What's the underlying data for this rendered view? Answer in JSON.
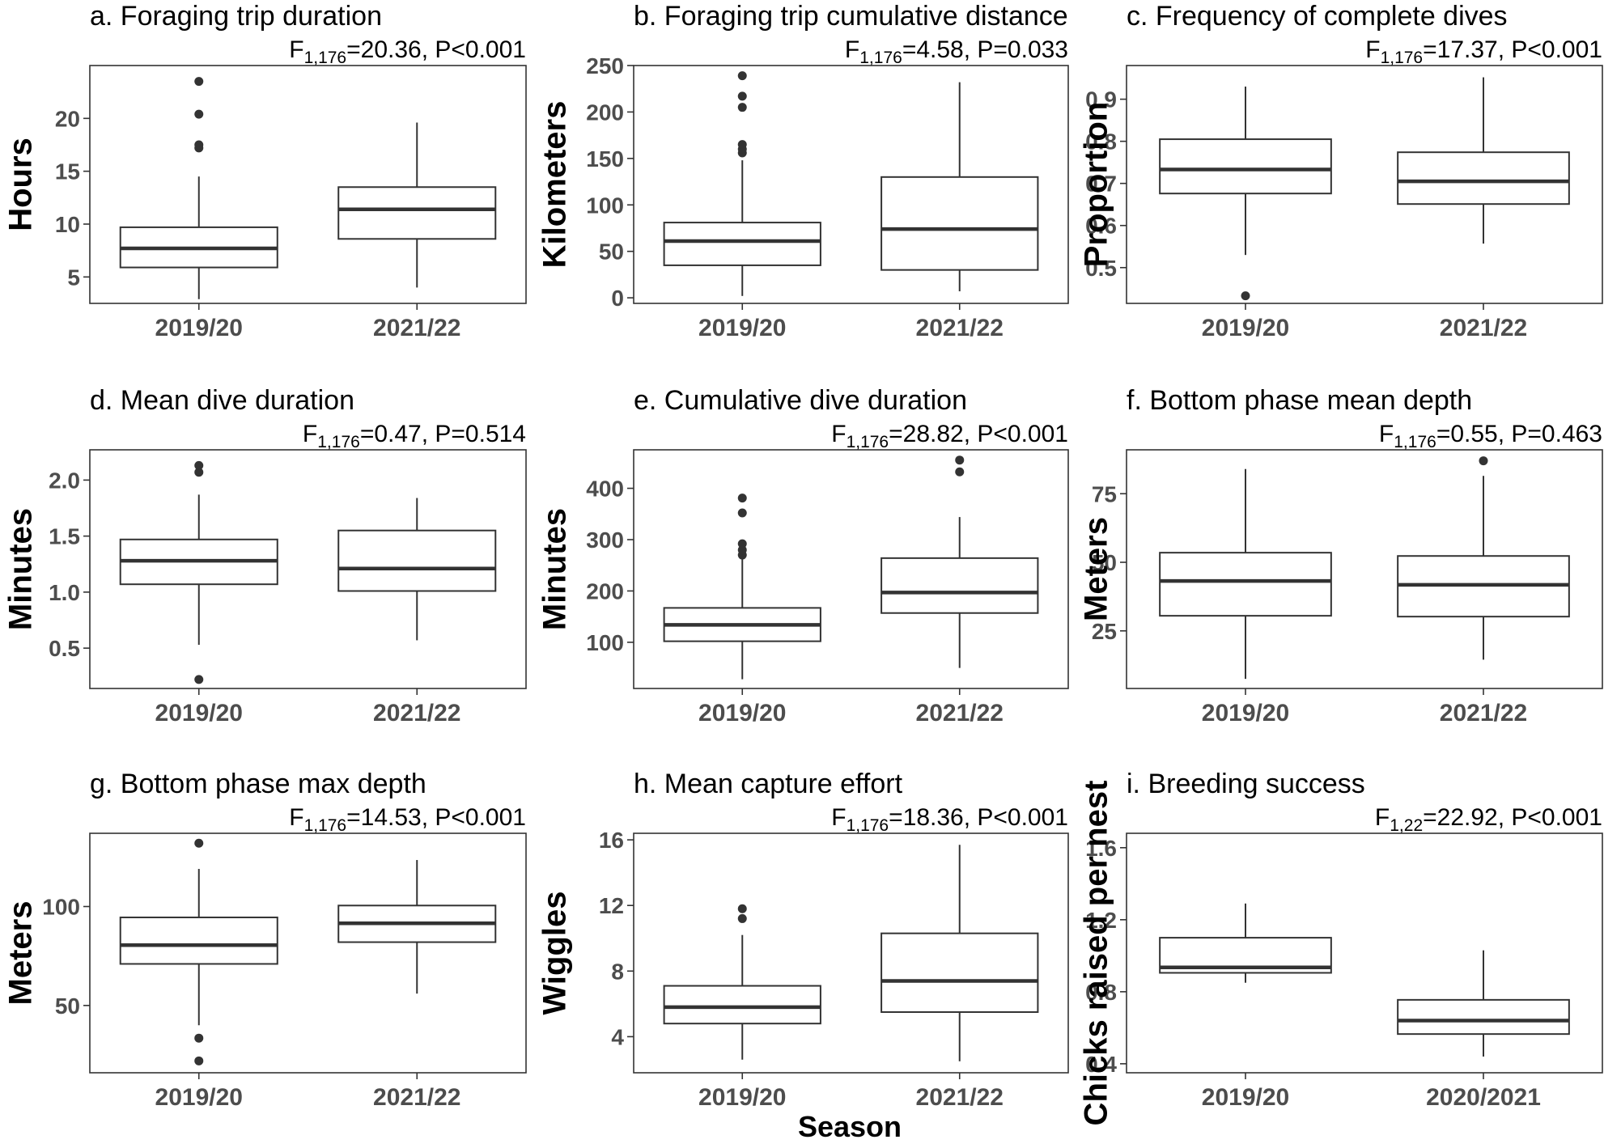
{
  "figure": {
    "shared_xlabel": "Season"
  },
  "chart_data": [
    {
      "type": "boxplot",
      "title": "a. Foraging trip duration",
      "stat": {
        "F": "F",
        "df": "1,176",
        "rest": "=20.36, P<0.001"
      },
      "ylabel": "Hours",
      "ylim": [
        2.5,
        25
      ],
      "yticks": [
        5,
        10,
        15,
        20
      ],
      "ytick_labels": [
        "5",
        "10",
        "15",
        "20"
      ],
      "categories": [
        "2019/20",
        "2021/22"
      ],
      "boxes": [
        {
          "min": 2.9,
          "q1": 5.9,
          "median": 7.7,
          "q3": 9.7,
          "max": 14.5,
          "outliers": [
            17.2,
            17.5,
            20.4,
            23.5
          ]
        },
        {
          "min": 4.0,
          "q1": 8.6,
          "median": 11.4,
          "q3": 13.5,
          "max": 19.6,
          "outliers": []
        }
      ]
    },
    {
      "type": "boxplot",
      "title": "b. Foraging trip cumulative distance",
      "stat": {
        "F": "F",
        "df": "1,176",
        "rest": "=4.58, P=0.033"
      },
      "ylabel": "Kilometers",
      "ylim": [
        -6,
        250
      ],
      "yticks": [
        0,
        50,
        100,
        150,
        200,
        250
      ],
      "ytick_labels": [
        "0",
        "50",
        "100",
        "150",
        "200",
        "250"
      ],
      "categories": [
        "2019/20",
        "2021/22"
      ],
      "boxes": [
        {
          "min": 2,
          "q1": 35,
          "median": 61,
          "q3": 81,
          "max": 148,
          "outliers": [
            156,
            160,
            165,
            205,
            217,
            239
          ]
        },
        {
          "min": 7,
          "q1": 30,
          "median": 74,
          "q3": 130,
          "max": 232,
          "outliers": []
        }
      ]
    },
    {
      "type": "boxplot",
      "title": "c. Frequency of complete dives",
      "stat": {
        "F": "F",
        "df": "1,176",
        "rest": "=17.37, P<0.001"
      },
      "ylabel": "Proportion",
      "ylim": [
        0.415,
        0.98
      ],
      "yticks": [
        0.5,
        0.6,
        0.7,
        0.8,
        0.9
      ],
      "ytick_labels": [
        "0.5",
        "0.6",
        "0.7",
        "0.8",
        "0.9"
      ],
      "categories": [
        "2019/20",
        "2021/22"
      ],
      "boxes": [
        {
          "min": 0.53,
          "q1": 0.676,
          "median": 0.733,
          "q3": 0.805,
          "max": 0.93,
          "outliers": [
            0.433
          ]
        },
        {
          "min": 0.557,
          "q1": 0.651,
          "median": 0.705,
          "q3": 0.774,
          "max": 0.952,
          "outliers": []
        }
      ]
    },
    {
      "type": "boxplot",
      "title": "d. Mean dive duration",
      "stat": {
        "F": "F",
        "df": "1,176",
        "rest": "=0.47, P=0.514"
      },
      "ylabel": "Minutes",
      "ylim": [
        0.14,
        2.27
      ],
      "yticks": [
        0.5,
        1.0,
        1.5,
        2.0
      ],
      "ytick_labels": [
        "0.5",
        "1.0",
        "1.5",
        "2.0"
      ],
      "categories": [
        "2019/20",
        "2021/22"
      ],
      "boxes": [
        {
          "min": 0.53,
          "q1": 1.07,
          "median": 1.28,
          "q3": 1.47,
          "max": 1.87,
          "outliers": [
            0.22,
            2.07,
            2.13
          ]
        },
        {
          "min": 0.57,
          "q1": 1.01,
          "median": 1.21,
          "q3": 1.55,
          "max": 1.84,
          "outliers": []
        }
      ]
    },
    {
      "type": "boxplot",
      "title": "e. Cumulative dive duration",
      "stat": {
        "F": "F",
        "df": "1,176",
        "rest": "=28.82, P<0.001"
      },
      "ylabel": "Minutes",
      "ylim": [
        10,
        475
      ],
      "yticks": [
        100,
        200,
        300,
        400
      ],
      "ytick_labels": [
        "100",
        "200",
        "300",
        "400"
      ],
      "categories": [
        "2019/20",
        "2021/22"
      ],
      "boxes": [
        {
          "min": 28,
          "q1": 102,
          "median": 134,
          "q3": 167,
          "max": 262,
          "outliers": [
            270,
            280,
            292,
            352,
            381
          ]
        },
        {
          "min": 50,
          "q1": 157,
          "median": 197,
          "q3": 264,
          "max": 344,
          "outliers": [
            432,
            455
          ]
        }
      ]
    },
    {
      "type": "boxplot",
      "title": "f. Bottom phase mean depth",
      "stat": {
        "F": "F",
        "df": "1,176",
        "rest": "=0.55, P=0.463"
      },
      "ylabel": "Meters",
      "ylim": [
        4,
        91
      ],
      "yticks": [
        25,
        50,
        75
      ],
      "ytick_labels": [
        "25",
        "50",
        "75"
      ],
      "categories": [
        "2019/20",
        "2021/22"
      ],
      "boxes": [
        {
          "min": 7.5,
          "q1": 30.5,
          "median": 43.2,
          "q3": 53.5,
          "max": 84,
          "outliers": []
        },
        {
          "min": 14.5,
          "q1": 30.2,
          "median": 41.8,
          "q3": 52.3,
          "max": 81.5,
          "outliers": [
            87
          ]
        }
      ]
    },
    {
      "type": "boxplot",
      "title": "g. Bottom phase max depth",
      "stat": {
        "F": "F",
        "df": "1,176",
        "rest": "=14.53, P<0.001"
      },
      "ylabel": "Meters",
      "ylim": [
        16,
        137
      ],
      "yticks": [
        50,
        100
      ],
      "ytick_labels": [
        "50",
        "100"
      ],
      "categories": [
        "2019/20",
        "2021/22"
      ],
      "boxes": [
        {
          "min": 40,
          "q1": 71,
          "median": 80.5,
          "q3": 94.5,
          "max": 119,
          "outliers": [
            22,
            33.5,
            132
          ]
        },
        {
          "min": 56,
          "q1": 82,
          "median": 91.5,
          "q3": 100.5,
          "max": 123.5,
          "outliers": []
        }
      ]
    },
    {
      "type": "boxplot",
      "title": "h. Mean capture effort",
      "stat": {
        "F": "F",
        "df": "1,176",
        "rest": "=18.36, P<0.001"
      },
      "ylabel": "Wiggles",
      "ylim": [
        1.8,
        16.4
      ],
      "yticks": [
        4,
        8,
        12,
        16
      ],
      "ytick_labels": [
        "4",
        "8",
        "12",
        "16"
      ],
      "categories": [
        "2019/20",
        "2021/22"
      ],
      "boxes": [
        {
          "min": 2.6,
          "q1": 4.8,
          "median": 5.8,
          "q3": 7.1,
          "max": 10.2,
          "outliers": [
            11.2,
            11.8
          ]
        },
        {
          "min": 2.5,
          "q1": 5.5,
          "median": 7.4,
          "q3": 10.3,
          "max": 15.7,
          "outliers": []
        }
      ]
    },
    {
      "type": "boxplot",
      "title": "i. Breeding success",
      "stat": {
        "F": "F",
        "df": "1,22",
        "rest": "=22.92, P<0.001"
      },
      "ylabel": "Chicks raised per nest",
      "ylim": [
        0.35,
        1.68
      ],
      "yticks": [
        0.4,
        0.8,
        1.2,
        1.6
      ],
      "ytick_labels": [
        "0.4",
        "0.8",
        "1.2",
        "1.6"
      ],
      "categories": [
        "2019/20",
        "2020/2021"
      ],
      "boxes": [
        {
          "min": 0.85,
          "q1": 0.905,
          "median": 0.935,
          "q3": 1.1,
          "max": 1.29,
          "outliers": []
        },
        {
          "min": 0.44,
          "q1": 0.565,
          "median": 0.64,
          "q3": 0.755,
          "max": 1.03,
          "outliers": []
        }
      ]
    }
  ]
}
